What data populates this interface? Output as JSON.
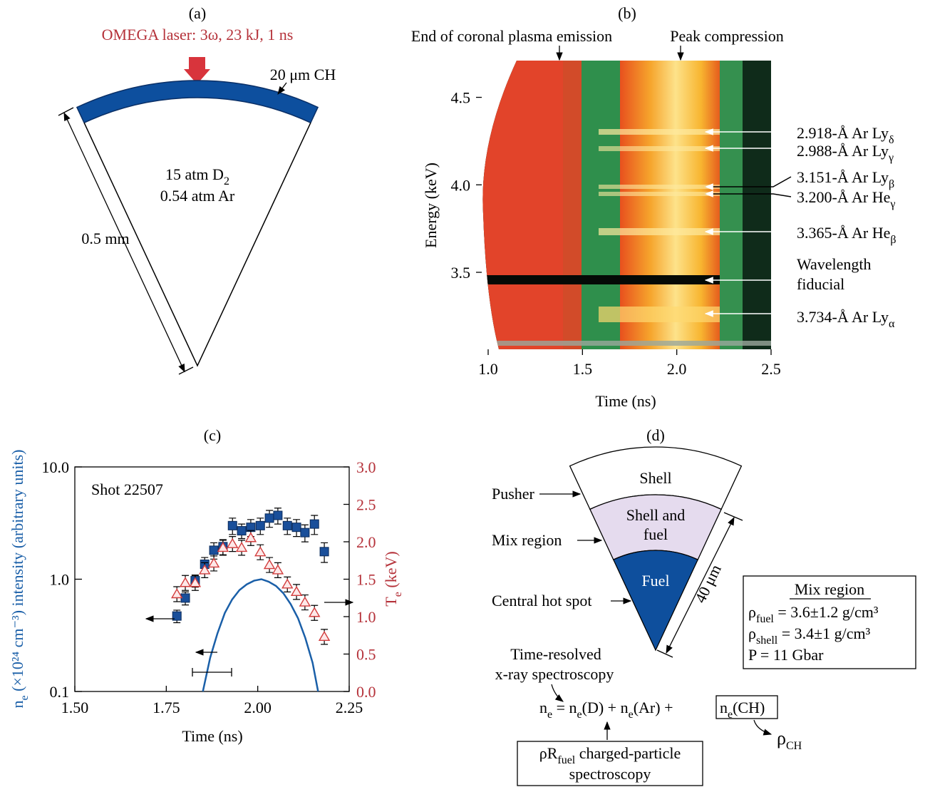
{
  "panel_a": {
    "label": "(a)",
    "laser": "OMEGA laser:  3ω, 23 kJ, 1 ns",
    "shell": "20 μm CH",
    "gas": [
      [
        "15 atm D",
        "2"
      ],
      [
        "0.54 atm Ar"
      ]
    ],
    "radius": "0.5 mm"
  },
  "panel_b": {
    "label": "(b)",
    "annotations": [
      "End of coronal plasma emission",
      "Peak compression"
    ],
    "xlabel": "Time (ns)",
    "ylabel": "Energy (keV)",
    "xlim": [
      1.0,
      2.5
    ],
    "xticks": [
      {
        "value": 1,
        "label": "1.0"
      },
      1.5,
      {
        "value": 2,
        "label": "2.0"
      },
      2.5
    ],
    "ylim": [
      3.06,
      4.71
    ],
    "yticks": [
      3.5,
      {
        "value": 4,
        "label": "4.0"
      },
      4.5
    ],
    "lines": [
      [
        "2.918-Å Ar Ly",
        "δ"
      ],
      [
        "2.988-Å Ar Ly",
        "γ"
      ],
      [
        "3.151-Å Ar Ly",
        "β"
      ],
      [
        "3.200-Å Ar He",
        "γ"
      ],
      [
        "3.365-Å Ar He",
        "β"
      ],
      [
        "3.734-Å Ar Ly",
        "α"
      ]
    ],
    "fiducial": [
      "Wavelength",
      "fiducial"
    ]
  },
  "chart_data": {
    "type": "scatter",
    "title": "(c)",
    "annotation": "Shot 22507",
    "xlabel": "Time (ns)",
    "ylabel": [
      "n",
      "e",
      " (×10²⁴ cm⁻³) intensity (arbitrary units)"
    ],
    "y2label": [
      "T",
      "e",
      " (keV)"
    ],
    "xlim": [
      1.5,
      2.25
    ],
    "xticks": [
      {
        "value": 1.5,
        "label": "1.50"
      },
      {
        "value": 1.75,
        "label": "1.75"
      },
      {
        "value": 2,
        "label": "2.00"
      },
      {
        "value": 2.25,
        "label": "2.25"
      }
    ],
    "ylim": [
      0.1,
      10
    ],
    "yticks": [
      0.1,
      {
        "value": 1,
        "label": "1.0"
      },
      {
        "value": 10,
        "label": "10.0"
      }
    ],
    "log_y": true,
    "y2lim": [
      0,
      3
    ],
    "y2ticks": [
      {
        "value": 0,
        "label": "0.0"
      },
      0.5,
      {
        "value": 1,
        "label": "1.0"
      },
      1.5,
      {
        "value": 2,
        "label": "2.0"
      },
      2.5,
      {
        "value": 3,
        "label": "3.0"
      }
    ],
    "series": [
      {
        "marker": "square",
        "color": "#1a4f9a",
        "x": [
          1.779,
          1.802,
          1.829,
          1.855,
          1.88,
          1.905,
          1.931,
          1.956,
          1.981,
          2.007,
          2.032,
          2.055,
          2.081,
          2.106,
          2.129,
          2.155,
          2.182
        ],
        "values": [
          0.47,
          0.68,
          0.97,
          1.36,
          1.81,
          1.95,
          3.0,
          2.7,
          2.9,
          3.0,
          3.5,
          3.7,
          3.0,
          2.9,
          2.6,
          3.1,
          1.76
        ],
        "errors": [
          0.06,
          0.09,
          0.12,
          0.2,
          0.3,
          0.3,
          0.5,
          0.4,
          0.5,
          0.5,
          0.6,
          0.6,
          0.5,
          0.5,
          0.45,
          0.6,
          0.35
        ]
      },
      {
        "marker": "triangle",
        "color": "#d23c3c",
        "axis": "y2",
        "x": [
          1.779,
          1.802,
          1.829,
          1.855,
          1.88,
          1.905,
          1.931,
          1.956,
          1.981,
          2.007,
          2.032,
          2.055,
          2.081,
          2.106,
          2.129,
          2.155,
          2.182
        ],
        "values": [
          1.3,
          1.45,
          1.45,
          1.62,
          1.71,
          1.92,
          1.97,
          1.92,
          2.05,
          1.86,
          1.69,
          1.62,
          1.43,
          1.33,
          1.19,
          1.05,
          0.73
        ],
        "errors": [
          0.1,
          0.1,
          0.1,
          0.1,
          0.1,
          0.1,
          0.1,
          0.1,
          0.1,
          0.1,
          0.1,
          0.1,
          0.1,
          0.1,
          0.1,
          0.1,
          0.1
        ]
      },
      {
        "marker": "line",
        "color": "#1a5fa8",
        "x": [
          1.85,
          1.87,
          1.89,
          1.91,
          1.93,
          1.95,
          1.97,
          1.99,
          2.01,
          2.03,
          2.05,
          2.07,
          2.09,
          2.11,
          2.13,
          2.15,
          2.165
        ],
        "values": [
          0.1,
          0.2,
          0.33,
          0.5,
          0.66,
          0.8,
          0.9,
          0.97,
          1.0,
          0.95,
          0.87,
          0.75,
          0.6,
          0.45,
          0.3,
          0.18,
          0.1
        ]
      }
    ]
  },
  "panel_d": {
    "label": "(d)",
    "shell": "Shell",
    "mix": [
      "Shell and",
      "fuel"
    ],
    "fuel": "Fuel",
    "pointers": [
      "Pusher",
      "Mix region",
      "Central hot spot"
    ],
    "size": "40 μm",
    "box": {
      "title": "Mix region",
      "rows": [
        [
          "ρ",
          "fuel",
          " = 3.6±1.2 g/cm³"
        ],
        [
          "ρ",
          "shell",
          " = 3.4±1 g/cm³"
        ],
        [
          "P = 11 Gbar"
        ]
      ]
    },
    "method_xray": [
      "Time-resolved",
      "x-ray spectroscopy"
    ],
    "equation": [
      "n",
      "e",
      " = n",
      "e",
      "(D) + n",
      "e",
      "(Ar) + "
    ],
    "boxed_term": [
      "n",
      "e",
      "(CH)"
    ],
    "rho_ch": [
      "ρ",
      "CH"
    ],
    "method_particle": [
      [
        "ρR",
        "fuel",
        " charged-particle"
      ],
      [
        "spectroscopy"
      ]
    ]
  }
}
